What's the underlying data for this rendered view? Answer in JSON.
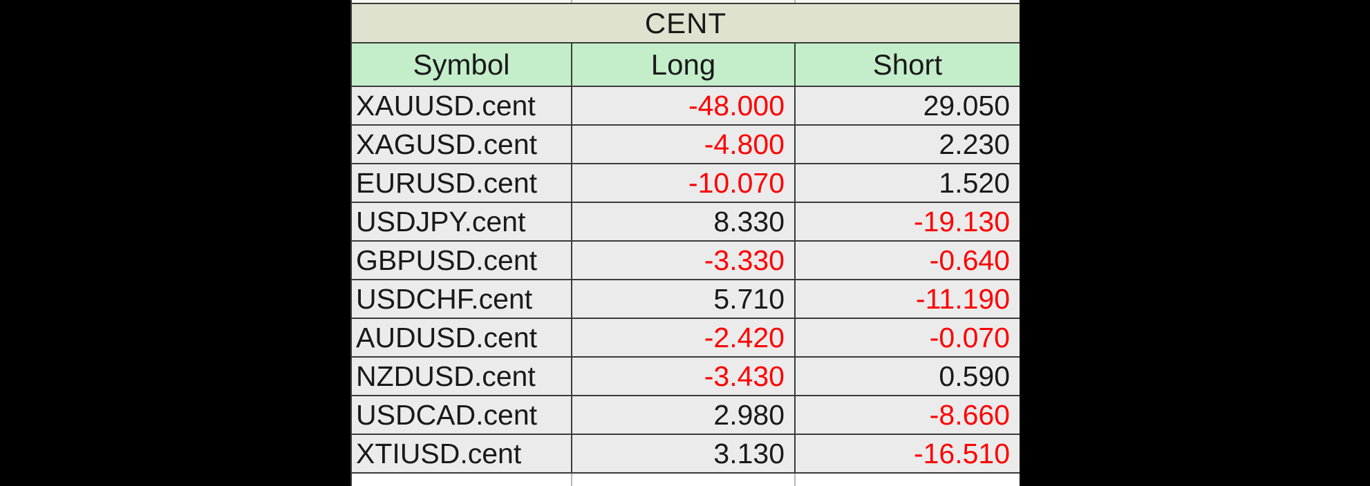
{
  "page": {
    "background": "#000000",
    "note_colors": {
      "title_bg": "#dee2cf",
      "header_bg": "#c4eeca",
      "cell_bg": "#ebebeb",
      "negative_value": "#fd0000",
      "text": "#191919",
      "grid_border": "#3a3a3a"
    }
  },
  "table": {
    "title": "CENT",
    "columns": [
      {
        "label": "Symbol"
      },
      {
        "label": "Long"
      },
      {
        "label": "Short"
      }
    ],
    "rows": [
      {
        "symbol": "XAUUSD.cent",
        "long": "-48.000",
        "short": "29.050"
      },
      {
        "symbol": "XAGUSD.cent",
        "long": "-4.800",
        "short": "2.230"
      },
      {
        "symbol": "EURUSD.cent",
        "long": "-10.070",
        "short": "1.520"
      },
      {
        "symbol": "USDJPY.cent",
        "long": "8.330",
        "short": "-19.130"
      },
      {
        "symbol": "GBPUSD.cent",
        "long": "-3.330",
        "short": "-0.640"
      },
      {
        "symbol": "USDCHF.cent",
        "long": "5.710",
        "short": "-11.190"
      },
      {
        "symbol": "AUDUSD.cent",
        "long": "-2.420",
        "short": "-0.070"
      },
      {
        "symbol": "NZDUSD.cent",
        "long": "-3.430",
        "short": "0.590"
      },
      {
        "symbol": "USDCAD.cent",
        "long": "2.980",
        "short": "-8.660"
      },
      {
        "symbol": "XTIUSD.cent",
        "long": "3.130",
        "short": "-16.510"
      }
    ]
  },
  "chart_data": {
    "type": "table",
    "title": "CENT",
    "columns": [
      "Symbol",
      "Long",
      "Short"
    ],
    "rows": [
      [
        "XAUUSD.cent",
        -48.0,
        29.05
      ],
      [
        "XAGUSD.cent",
        -4.8,
        2.23
      ],
      [
        "EURUSD.cent",
        -10.07,
        1.52
      ],
      [
        "USDJPY.cent",
        8.33,
        -19.13
      ],
      [
        "GBPUSD.cent",
        -3.33,
        -0.64
      ],
      [
        "USDCHF.cent",
        5.71,
        -11.19
      ],
      [
        "AUDUSD.cent",
        -2.42,
        -0.07
      ],
      [
        "NZDUSD.cent",
        -3.43,
        0.59
      ],
      [
        "USDCAD.cent",
        2.98,
        -8.66
      ],
      [
        "XTIUSD.cent",
        3.13,
        -16.51
      ]
    ],
    "layout_hints": {
      "negative_values_colored": "#fd0000",
      "title_row_merged_across_columns": true,
      "cropped_rows_visible_top_and_bottom": true
    }
  }
}
